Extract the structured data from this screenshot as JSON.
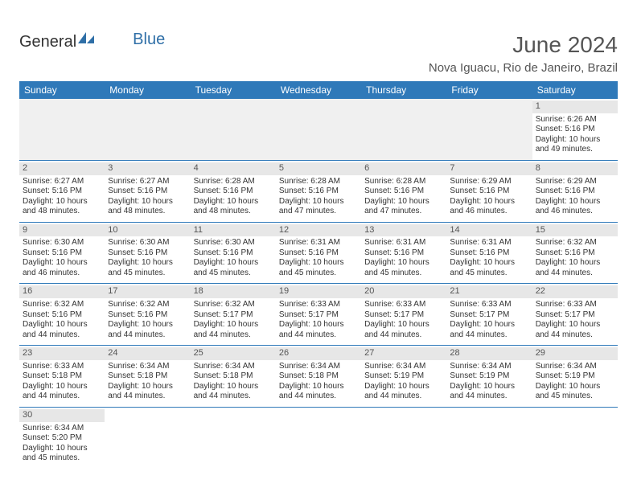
{
  "header": {
    "logo_text_1": "General",
    "logo_text_2": "Blue",
    "title": "June 2024",
    "subtitle": "Nova Iguacu, Rio de Janeiro, Brazil"
  },
  "colors": {
    "header_bg": "#2f79b9",
    "header_text": "#ffffff",
    "daynum_bg": "#e7e7e7",
    "border": "#2f79b9",
    "logo_blue": "#2f6fa7"
  },
  "day_headers": [
    "Sunday",
    "Monday",
    "Tuesday",
    "Wednesday",
    "Thursday",
    "Friday",
    "Saturday"
  ],
  "weeks": [
    [
      null,
      null,
      null,
      null,
      null,
      null,
      {
        "n": "1",
        "sunrise": "Sunrise: 6:26 AM",
        "sunset": "Sunset: 5:16 PM",
        "daylight1": "Daylight: 10 hours",
        "daylight2": "and 49 minutes."
      }
    ],
    [
      {
        "n": "2",
        "sunrise": "Sunrise: 6:27 AM",
        "sunset": "Sunset: 5:16 PM",
        "daylight1": "Daylight: 10 hours",
        "daylight2": "and 48 minutes."
      },
      {
        "n": "3",
        "sunrise": "Sunrise: 6:27 AM",
        "sunset": "Sunset: 5:16 PM",
        "daylight1": "Daylight: 10 hours",
        "daylight2": "and 48 minutes."
      },
      {
        "n": "4",
        "sunrise": "Sunrise: 6:28 AM",
        "sunset": "Sunset: 5:16 PM",
        "daylight1": "Daylight: 10 hours",
        "daylight2": "and 48 minutes."
      },
      {
        "n": "5",
        "sunrise": "Sunrise: 6:28 AM",
        "sunset": "Sunset: 5:16 PM",
        "daylight1": "Daylight: 10 hours",
        "daylight2": "and 47 minutes."
      },
      {
        "n": "6",
        "sunrise": "Sunrise: 6:28 AM",
        "sunset": "Sunset: 5:16 PM",
        "daylight1": "Daylight: 10 hours",
        "daylight2": "and 47 minutes."
      },
      {
        "n": "7",
        "sunrise": "Sunrise: 6:29 AM",
        "sunset": "Sunset: 5:16 PM",
        "daylight1": "Daylight: 10 hours",
        "daylight2": "and 46 minutes."
      },
      {
        "n": "8",
        "sunrise": "Sunrise: 6:29 AM",
        "sunset": "Sunset: 5:16 PM",
        "daylight1": "Daylight: 10 hours",
        "daylight2": "and 46 minutes."
      }
    ],
    [
      {
        "n": "9",
        "sunrise": "Sunrise: 6:30 AM",
        "sunset": "Sunset: 5:16 PM",
        "daylight1": "Daylight: 10 hours",
        "daylight2": "and 46 minutes."
      },
      {
        "n": "10",
        "sunrise": "Sunrise: 6:30 AM",
        "sunset": "Sunset: 5:16 PM",
        "daylight1": "Daylight: 10 hours",
        "daylight2": "and 45 minutes."
      },
      {
        "n": "11",
        "sunrise": "Sunrise: 6:30 AM",
        "sunset": "Sunset: 5:16 PM",
        "daylight1": "Daylight: 10 hours",
        "daylight2": "and 45 minutes."
      },
      {
        "n": "12",
        "sunrise": "Sunrise: 6:31 AM",
        "sunset": "Sunset: 5:16 PM",
        "daylight1": "Daylight: 10 hours",
        "daylight2": "and 45 minutes."
      },
      {
        "n": "13",
        "sunrise": "Sunrise: 6:31 AM",
        "sunset": "Sunset: 5:16 PM",
        "daylight1": "Daylight: 10 hours",
        "daylight2": "and 45 minutes."
      },
      {
        "n": "14",
        "sunrise": "Sunrise: 6:31 AM",
        "sunset": "Sunset: 5:16 PM",
        "daylight1": "Daylight: 10 hours",
        "daylight2": "and 45 minutes."
      },
      {
        "n": "15",
        "sunrise": "Sunrise: 6:32 AM",
        "sunset": "Sunset: 5:16 PM",
        "daylight1": "Daylight: 10 hours",
        "daylight2": "and 44 minutes."
      }
    ],
    [
      {
        "n": "16",
        "sunrise": "Sunrise: 6:32 AM",
        "sunset": "Sunset: 5:16 PM",
        "daylight1": "Daylight: 10 hours",
        "daylight2": "and 44 minutes."
      },
      {
        "n": "17",
        "sunrise": "Sunrise: 6:32 AM",
        "sunset": "Sunset: 5:16 PM",
        "daylight1": "Daylight: 10 hours",
        "daylight2": "and 44 minutes."
      },
      {
        "n": "18",
        "sunrise": "Sunrise: 6:32 AM",
        "sunset": "Sunset: 5:17 PM",
        "daylight1": "Daylight: 10 hours",
        "daylight2": "and 44 minutes."
      },
      {
        "n": "19",
        "sunrise": "Sunrise: 6:33 AM",
        "sunset": "Sunset: 5:17 PM",
        "daylight1": "Daylight: 10 hours",
        "daylight2": "and 44 minutes."
      },
      {
        "n": "20",
        "sunrise": "Sunrise: 6:33 AM",
        "sunset": "Sunset: 5:17 PM",
        "daylight1": "Daylight: 10 hours",
        "daylight2": "and 44 minutes."
      },
      {
        "n": "21",
        "sunrise": "Sunrise: 6:33 AM",
        "sunset": "Sunset: 5:17 PM",
        "daylight1": "Daylight: 10 hours",
        "daylight2": "and 44 minutes."
      },
      {
        "n": "22",
        "sunrise": "Sunrise: 6:33 AM",
        "sunset": "Sunset: 5:17 PM",
        "daylight1": "Daylight: 10 hours",
        "daylight2": "and 44 minutes."
      }
    ],
    [
      {
        "n": "23",
        "sunrise": "Sunrise: 6:33 AM",
        "sunset": "Sunset: 5:18 PM",
        "daylight1": "Daylight: 10 hours",
        "daylight2": "and 44 minutes."
      },
      {
        "n": "24",
        "sunrise": "Sunrise: 6:34 AM",
        "sunset": "Sunset: 5:18 PM",
        "daylight1": "Daylight: 10 hours",
        "daylight2": "and 44 minutes."
      },
      {
        "n": "25",
        "sunrise": "Sunrise: 6:34 AM",
        "sunset": "Sunset: 5:18 PM",
        "daylight1": "Daylight: 10 hours",
        "daylight2": "and 44 minutes."
      },
      {
        "n": "26",
        "sunrise": "Sunrise: 6:34 AM",
        "sunset": "Sunset: 5:18 PM",
        "daylight1": "Daylight: 10 hours",
        "daylight2": "and 44 minutes."
      },
      {
        "n": "27",
        "sunrise": "Sunrise: 6:34 AM",
        "sunset": "Sunset: 5:19 PM",
        "daylight1": "Daylight: 10 hours",
        "daylight2": "and 44 minutes."
      },
      {
        "n": "28",
        "sunrise": "Sunrise: 6:34 AM",
        "sunset": "Sunset: 5:19 PM",
        "daylight1": "Daylight: 10 hours",
        "daylight2": "and 44 minutes."
      },
      {
        "n": "29",
        "sunrise": "Sunrise: 6:34 AM",
        "sunset": "Sunset: 5:19 PM",
        "daylight1": "Daylight: 10 hours",
        "daylight2": "and 45 minutes."
      }
    ],
    [
      {
        "n": "30",
        "sunrise": "Sunrise: 6:34 AM",
        "sunset": "Sunset: 5:20 PM",
        "daylight1": "Daylight: 10 hours",
        "daylight2": "and 45 minutes."
      },
      null,
      null,
      null,
      null,
      null,
      null
    ]
  ]
}
